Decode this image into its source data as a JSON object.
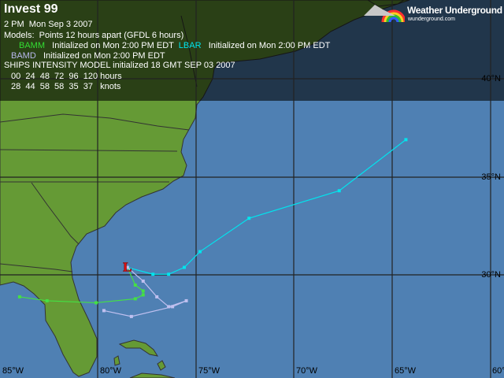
{
  "header": {
    "title": "Invest 99",
    "datetime": "2 PM  Mon Sep 3 2007",
    "models_line": "Models:  Points 12 hours apart (GFDL 6 hours)",
    "models": [
      {
        "name": "BAMM",
        "init": "Initialized on Mon 2:00 PM EDT",
        "color": "#33dd33"
      },
      {
        "name": "LBAR",
        "init": "Initialized on Mon 2:00 PM EDT",
        "color": "#00e5ee"
      },
      {
        "name": "BAMD",
        "init": "Initialized on Mon 2:00 PM EDT",
        "color": "#b8b8ee"
      }
    ],
    "ships_title": "SHIPS INTENSITY MODEL initialized 18 GMT SEP 03 2007",
    "ships_hours": "00  24  48  72  96  120 hours",
    "ships_knots": "28  44  58  58  35  37   knots"
  },
  "logo": {
    "name": "Weather Underground",
    "url": "wunderground.com"
  },
  "map": {
    "ocean_color": "#4f80b3",
    "land_color": "#659a35",
    "storm_marker": {
      "label": "L",
      "lon": -78.5,
      "lat": 30.4,
      "color": "#e01010"
    },
    "lon_labels": [
      "85°W",
      "80°W",
      "75°W",
      "70°W",
      "65°W",
      "60°W"
    ],
    "lat_labels": [
      "40°N",
      "35°N",
      "30°N"
    ]
  },
  "tracks": [
    {
      "name": "LBAR",
      "color": "#00e5ee",
      "points": [
        [
          -78.5,
          30.4
        ],
        [
          -77.2,
          30.05
        ],
        [
          -76.4,
          30.05
        ],
        [
          -75.6,
          30.4
        ],
        [
          -74.8,
          31.2
        ],
        [
          -72.3,
          32.9
        ],
        [
          -67.7,
          34.3
        ],
        [
          -64.3,
          36.9
        ]
      ]
    },
    {
      "name": "BAMM",
      "color": "#44e044",
      "points": [
        [
          -78.5,
          30.4
        ],
        [
          -78.1,
          29.5
        ],
        [
          -77.7,
          29.2
        ],
        [
          -77.7,
          29.0
        ],
        [
          -78.1,
          28.8
        ],
        [
          -80.1,
          28.6
        ],
        [
          -82.6,
          28.7
        ],
        [
          -84.0,
          28.9
        ]
      ]
    },
    {
      "name": "BAMD",
      "color": "#c0c0f0",
      "points": [
        [
          -78.5,
          30.4
        ],
        [
          -77.7,
          29.7
        ],
        [
          -77.0,
          28.9
        ],
        [
          -76.4,
          28.4
        ],
        [
          -75.5,
          28.7
        ],
        [
          -76.2,
          28.4
        ],
        [
          -78.3,
          27.9
        ],
        [
          -79.7,
          28.2
        ]
      ]
    }
  ]
}
